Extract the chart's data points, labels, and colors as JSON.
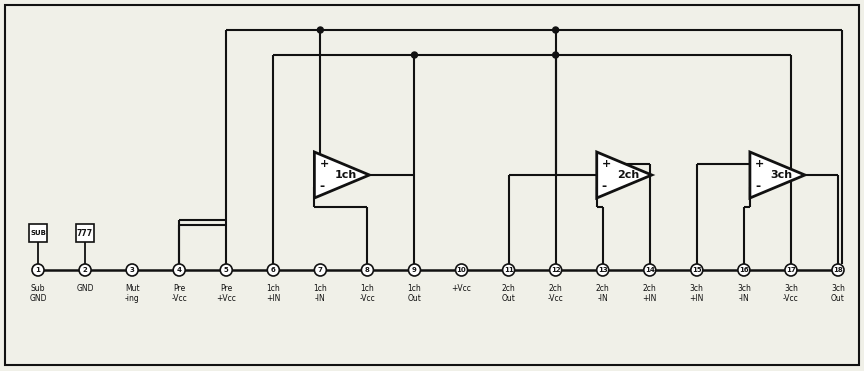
{
  "figure_width": 8.64,
  "figure_height": 3.71,
  "dpi": 100,
  "bg": "#f0f0e8",
  "lc": "#111111",
  "pin_labels": [
    "Sub\nGND",
    "GND",
    "Mut\n-ing",
    "Pre\n-Vcc",
    "Pre\n+Vcc",
    "1ch\n+IN",
    "1ch\n-IN",
    "1ch\n-Vcc",
    "1ch\nOut",
    "+Vcc",
    "2ch\nOut",
    "2ch\n-Vcc",
    "2ch\n-IN",
    "2ch\n+IN",
    "3ch\n+IN",
    "3ch\n-IN",
    "3ch\n-Vcc",
    "3ch\nOut"
  ]
}
